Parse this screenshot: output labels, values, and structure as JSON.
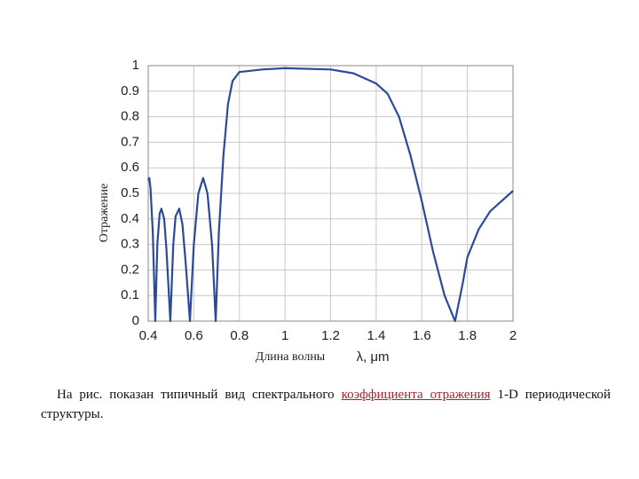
{
  "chart_data": {
    "type": "line",
    "y_label": "Отражение",
    "x_label": "Длина волны",
    "x_unit": "λ, μm",
    "x": [
      0.4,
      0.405,
      0.41,
      0.42,
      0.431,
      0.44,
      0.45,
      0.458,
      0.47,
      0.48,
      0.497,
      0.51,
      0.52,
      0.536,
      0.55,
      0.565,
      0.583,
      0.6,
      0.62,
      0.641,
      0.66,
      0.68,
      0.696,
      0.71,
      0.73,
      0.75,
      0.77,
      0.8,
      0.9,
      1.0,
      1.2,
      1.3,
      1.4,
      1.45,
      1.5,
      1.55,
      1.6,
      1.65,
      1.7,
      1.746,
      1.78,
      1.8,
      1.85,
      1.9,
      1.95,
      2.0
    ],
    "series": [
      {
        "color": "#2b4a9a",
        "values": [
          0.55,
          0.56,
          0.52,
          0.35,
          0,
          0.3,
          0.42,
          0.44,
          0.4,
          0.28,
          0,
          0.3,
          0.41,
          0.44,
          0.38,
          0.22,
          0,
          0.3,
          0.5,
          0.56,
          0.5,
          0.3,
          0,
          0.35,
          0.65,
          0.85,
          0.94,
          0.975,
          0.985,
          0.99,
          0.985,
          0.97,
          0.93,
          0.89,
          0.8,
          0.65,
          0.47,
          0.27,
          0.1,
          0,
          0.15,
          0.25,
          0.36,
          0.43,
          0.47,
          0.51
        ]
      }
    ],
    "xlim": [
      0.4,
      2
    ],
    "xticks": [
      0.4,
      0.6,
      0.8,
      1,
      1.2,
      1.4,
      1.6,
      1.8,
      2
    ],
    "ylim": [
      0,
      1
    ],
    "yticks": [
      0,
      0.1,
      0.2,
      0.3,
      0.4,
      0.5,
      0.6,
      0.7,
      0.8,
      0.9,
      1
    ],
    "grid": true
  },
  "caption": {
    "before": "На рис. показан типичный вид спектрального ",
    "link": "коэффициента отражения",
    "after": " 1-D периодической структуры."
  }
}
